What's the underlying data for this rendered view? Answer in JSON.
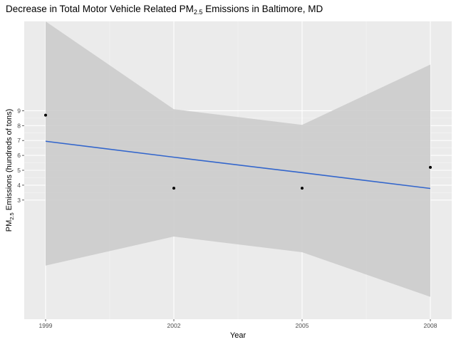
{
  "chart_data": {
    "type": "scatter",
    "title_main": "Decrease in Total Motor Vehicle Related PM",
    "title_sub": "2.5",
    "title_tail": " Emissions in Baltimore, MD",
    "xlabel": "Year",
    "ylabel_main": "PM",
    "ylabel_sub": "2.5",
    "ylabel_tail": " Emissions (hundreds of tons)",
    "x_ticks": [
      "1999",
      "2002",
      "2005",
      "2008"
    ],
    "y_ticks": [
      "3",
      "4",
      "5",
      "6",
      "7",
      "8",
      "9"
    ],
    "xlim": [
      1998.5,
      2008.5
    ],
    "ylim": [
      -5.0,
      15.0
    ],
    "points": [
      {
        "x": 1999,
        "y": 8.7
      },
      {
        "x": 2002,
        "y": 3.8
      },
      {
        "x": 2005,
        "y": 3.8
      },
      {
        "x": 2008,
        "y": 5.2
      }
    ],
    "trend": {
      "x": [
        1999,
        2002,
        2005,
        2008
      ],
      "y": [
        6.95,
        5.88,
        4.84,
        3.78
      ],
      "lower": [
        -1.4,
        0.55,
        -0.5,
        -3.5
      ],
      "upper": [
        15.0,
        9.1,
        8.05,
        12.1
      ]
    },
    "colors": {
      "panel": "#ebebeb",
      "grid_major": "#ffffff",
      "ribbon": "#cccccc",
      "line": "#3366cc",
      "point": "#000000"
    }
  }
}
